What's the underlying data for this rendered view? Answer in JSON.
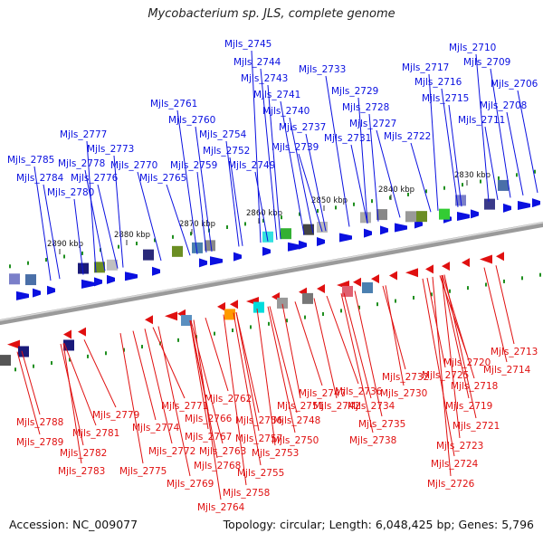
{
  "title": "Mycobacterium sp. JLS, complete genome",
  "footer": {
    "accession": "Accession: NC_009077",
    "summary": "Topology: circular; Length: 6,048,425 bp; Genes: 5,796"
  },
  "colors": {
    "forward": "#0a10e0",
    "reverse": "#e01010",
    "backbone": "#8c8c8c",
    "gc_tick": "#1f8f1f"
  },
  "ticks": [
    "2830 kbp",
    "2840 kbp",
    "2850 kbp",
    "2860 kbp",
    "2870 kbp",
    "2880 kbp",
    "2890 kbp"
  ],
  "forward_labels": [
    "Mjls_2745",
    "Mjls_2710",
    "Mjls_2744",
    "Mjls_2709",
    "Mjls_2733",
    "Mjls_2717",
    "Mjls_2743",
    "Mjls_2716",
    "Mjls_2706",
    "Mjls_2741",
    "Mjls_2729",
    "Mjls_2715",
    "Mjls_2708",
    "Mjls_2761",
    "Mjls_2740",
    "Mjls_2728",
    "Mjls_2711",
    "Mjls_2760",
    "Mjls_2737",
    "Mjls_2727",
    "Mjls_2777",
    "Mjls_2754",
    "Mjls_2731",
    "Mjls_2722",
    "Mjls_2739",
    "Mjls_2773",
    "Mjls_2752",
    "Mjls_2785",
    "Mjls_2778",
    "Mjls_2770",
    "Mjls_2759",
    "Mjls_2749",
    "Mjls_2784",
    "Mjls_2776",
    "Mjls_2765",
    "Mjls_2780"
  ],
  "reverse_labels": [
    "Mjls_2713",
    "Mjls_2714",
    "Mjls_2720",
    "Mjls_2718",
    "Mjls_2725",
    "Mjls_2732",
    "Mjls_2719",
    "Mjls_2736",
    "Mjls_2730",
    "Mjls_2762",
    "Mjls_2747",
    "Mjls_2771",
    "Mjls_2751",
    "Mjls_2742",
    "Mjls_2734",
    "Mjls_2779",
    "Mjls_2766",
    "Mjls_2756",
    "Mjls_2748",
    "Mjls_2721",
    "Mjls_2788",
    "Mjls_2774",
    "Mjls_2735",
    "Mjls_2781",
    "Mjls_2767",
    "Mjls_2757",
    "Mjls_2750",
    "Mjls_2738",
    "Mjls_2723",
    "Mjls_2789",
    "Mjls_2772",
    "Mjls_2763",
    "Mjls_2753",
    "Mjls_2782",
    "Mjls_2768",
    "Mjls_2724",
    "Mjls_2783",
    "Mjls_2775",
    "Mjls_2755",
    "Mjls_2769",
    "Mjls_2726",
    "Mjls_2758",
    "Mjls_2764"
  ]
}
